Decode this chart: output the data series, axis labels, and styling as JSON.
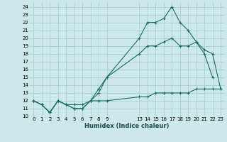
{
  "xlabel": "Humidex (Indice chaleur)",
  "bg_color": "#cce8e8",
  "grid_color": "#aacfcf",
  "line_color": "#1a6b6b",
  "line1_x": [
    0,
    1,
    2,
    3,
    4,
    5,
    6,
    7,
    8,
    9,
    13,
    14,
    15,
    16,
    17,
    18,
    19,
    20,
    21,
    22
  ],
  "line1_y": [
    12,
    11.5,
    10.5,
    12,
    11.5,
    11,
    11,
    12,
    13,
    15,
    20,
    22,
    22,
    22.5,
    24,
    22,
    21,
    19.5,
    18,
    15
  ],
  "line2_x": [
    0,
    1,
    2,
    3,
    4,
    5,
    6,
    7,
    8,
    9,
    13,
    14,
    15,
    16,
    17,
    18,
    19,
    20,
    21,
    22,
    23
  ],
  "line2_y": [
    12,
    11.5,
    10.5,
    12,
    11.5,
    11,
    11,
    12,
    13.5,
    15,
    18,
    19,
    19,
    19.5,
    20,
    19,
    19,
    19.5,
    18.5,
    18,
    13.5
  ],
  "line3_x": [
    0,
    1,
    2,
    3,
    4,
    5,
    6,
    7,
    8,
    9,
    13,
    14,
    15,
    16,
    17,
    18,
    19,
    20,
    21,
    22,
    23
  ],
  "line3_y": [
    12,
    11.5,
    10.5,
    12,
    11.5,
    11.5,
    11.5,
    12,
    12,
    12,
    12.5,
    12.5,
    13,
    13,
    13,
    13,
    13,
    13.5,
    13.5,
    13.5,
    13.5
  ],
  "ylim": [
    10,
    24.5
  ],
  "xlim": [
    -0.5,
    23.5
  ],
  "yticks": [
    10,
    11,
    12,
    13,
    14,
    15,
    16,
    17,
    18,
    19,
    20,
    21,
    22,
    23,
    24
  ],
  "xticks": [
    0,
    1,
    2,
    3,
    4,
    5,
    6,
    7,
    8,
    9,
    13,
    14,
    15,
    16,
    17,
    18,
    19,
    20,
    21,
    22,
    23
  ],
  "xtick_labels": [
    "0",
    "1",
    "2",
    "3",
    "4",
    "5",
    "6",
    "7",
    "8",
    "9",
    "13",
    "14",
    "15",
    "16",
    "17",
    "18",
    "19",
    "20",
    "21",
    "22",
    "23"
  ]
}
